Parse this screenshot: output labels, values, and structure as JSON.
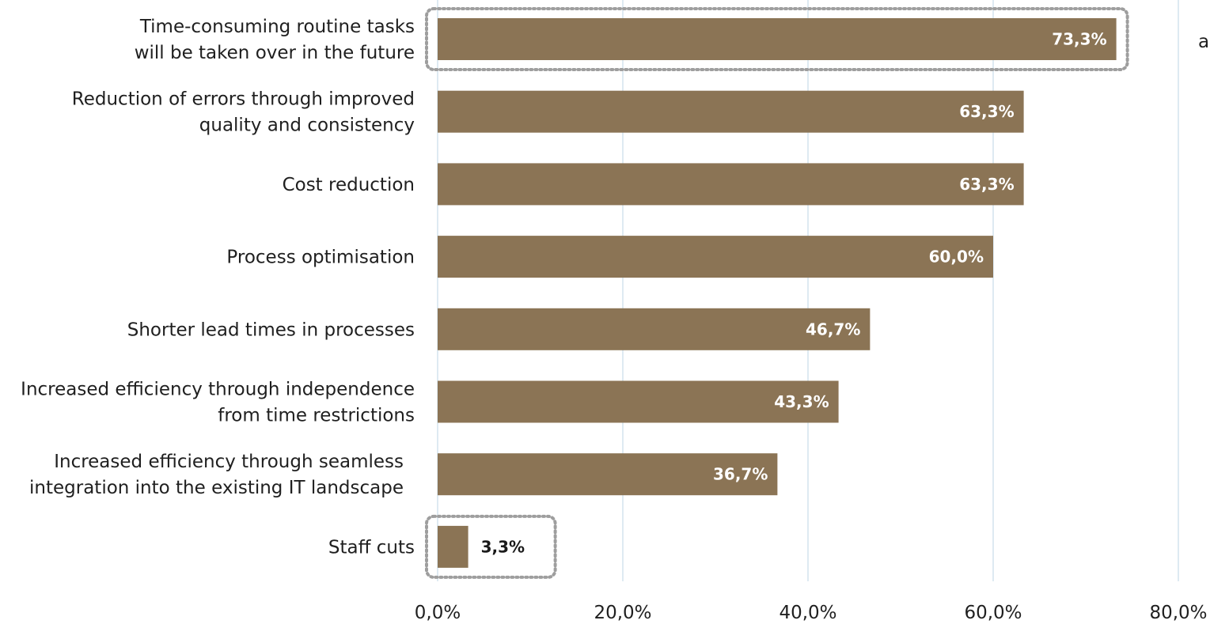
{
  "chart_data": {
    "type": "bar",
    "orientation": "horizontal",
    "categories": [
      [
        "Time-consuming routine tasks",
        "will be taken over in the future"
      ],
      [
        "Reduction of errors through improved",
        "quality and consistency"
      ],
      [
        "Cost reduction"
      ],
      [
        "Process optimisation"
      ],
      [
        "Shorter lead times in processes"
      ],
      [
        "Increased efficiency through independence",
        "from time restrictions"
      ],
      [
        "Increased efficiency through seamless",
        "integration into the existing IT landscape"
      ],
      [
        "Staff cuts"
      ]
    ],
    "values": [
      73.3,
      63.3,
      63.3,
      60.0,
      46.7,
      43.3,
      36.7,
      3.3
    ],
    "value_labels": [
      "73,3%",
      "63,3%",
      "63,3%",
      "60,0%",
      "46,7%",
      "43,3%",
      "36,7%",
      "3,3%"
    ],
    "highlighted": [
      0,
      7
    ],
    "xlim": [
      0,
      80
    ],
    "xticks": [
      0,
      20,
      40,
      60,
      80
    ],
    "xtick_labels": [
      "0,0%",
      "20,0%",
      "40,0%",
      "60,0%",
      "80,0%"
    ],
    "grid": "vertical",
    "legend": "none",
    "title": "",
    "xlabel": "",
    "ylabel": "",
    "side_note": "a",
    "colors": {
      "bar": "#8b7455",
      "grid": "#c9dbe8",
      "highlight_border": "#9e9e9e",
      "label_inside": "#ffffff",
      "label_outside": "#1a1a1a"
    }
  }
}
